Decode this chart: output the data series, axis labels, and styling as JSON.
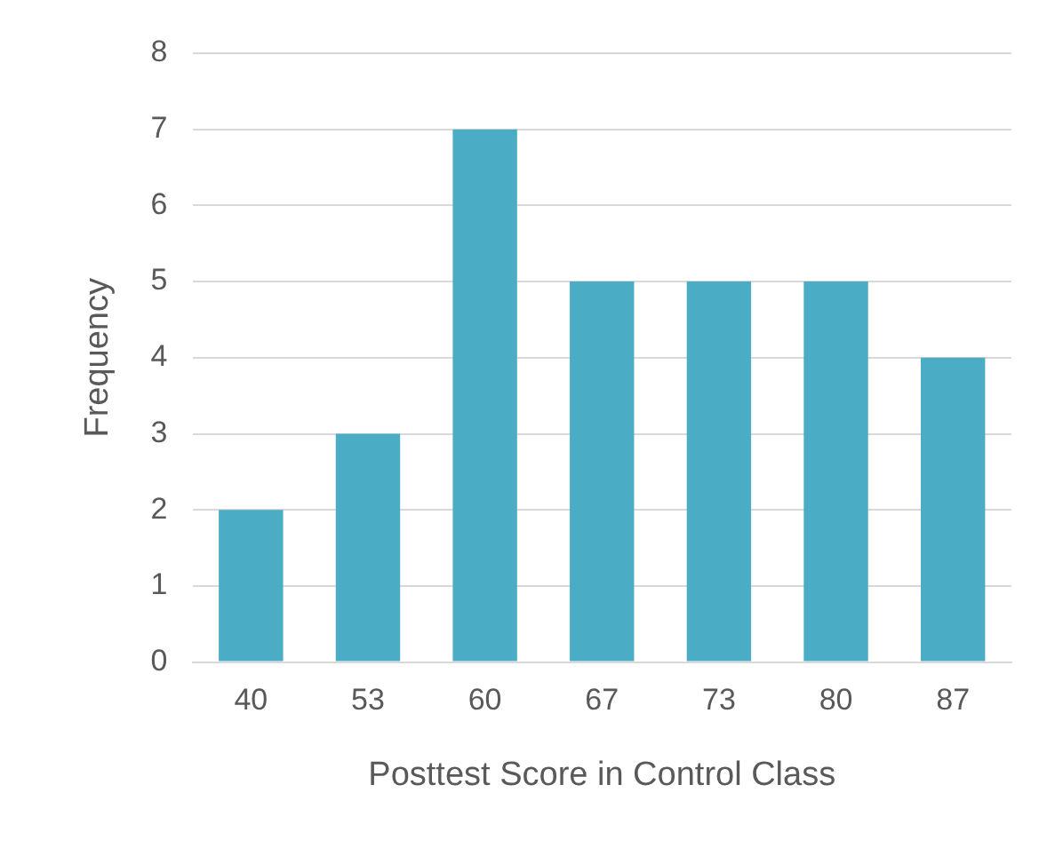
{
  "chart_data": {
    "type": "bar",
    "xlabel": "Posttest Score in Control Class",
    "ylabel": "Frequency",
    "categories": [
      "40",
      "53",
      "60",
      "67",
      "73",
      "80",
      "87"
    ],
    "values": [
      2,
      3,
      7,
      5,
      5,
      5,
      4
    ],
    "color": "#4bacc6",
    "ylim": [
      0,
      8
    ],
    "yticks": [
      0,
      1,
      2,
      3,
      4,
      5,
      6,
      7,
      8
    ],
    "grid": "y"
  }
}
